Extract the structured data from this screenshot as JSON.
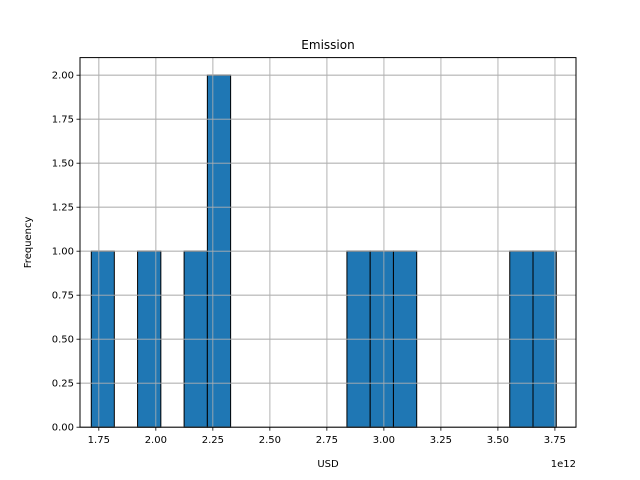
{
  "chart_data": {
    "type": "bar",
    "title": "Emission",
    "xlabel": "USD",
    "ylabel": "Frequency",
    "x_offset_label": "1e12",
    "x_scale": 1000000000000.0,
    "xlim": [
      1.6675,
      3.8425
    ],
    "ylim": [
      0,
      2.1
    ],
    "grid": true,
    "colors": {
      "bar_fill": "#1f77b4",
      "bar_edge": "#000000",
      "grid": "#b0b0b0"
    },
    "x_ticks": [
      1.75,
      2.0,
      2.25,
      2.5,
      2.75,
      3.0,
      3.25,
      3.5,
      3.75
    ],
    "x_tick_labels": [
      "1.75",
      "2.00",
      "2.25",
      "2.50",
      "2.75",
      "3.00",
      "3.25",
      "3.50",
      "3.75"
    ],
    "y_ticks": [
      0,
      0.25,
      0.5,
      0.75,
      1.0,
      1.25,
      1.5,
      1.75,
      2.0
    ],
    "y_tick_labels": [
      "0.00",
      "0.25",
      "0.50",
      "0.75",
      "1.00",
      "1.25",
      "1.50",
      "1.75",
      "2.00"
    ],
    "bins": [
      {
        "x0": 1.717,
        "x1": 1.818,
        "count": 1
      },
      {
        "x0": 1.818,
        "x1": 1.92,
        "count": 0
      },
      {
        "x0": 1.92,
        "x1": 2.022,
        "count": 1
      },
      {
        "x0": 2.022,
        "x1": 2.124,
        "count": 0
      },
      {
        "x0": 2.124,
        "x1": 2.226,
        "count": 1
      },
      {
        "x0": 2.226,
        "x1": 2.328,
        "count": 2
      },
      {
        "x0": 2.328,
        "x1": 2.43,
        "count": 0
      },
      {
        "x0": 2.43,
        "x1": 2.532,
        "count": 0
      },
      {
        "x0": 2.532,
        "x1": 2.634,
        "count": 0
      },
      {
        "x0": 2.634,
        "x1": 2.736,
        "count": 0
      },
      {
        "x0": 2.736,
        "x1": 2.838,
        "count": 0
      },
      {
        "x0": 2.838,
        "x1": 2.94,
        "count": 1
      },
      {
        "x0": 2.94,
        "x1": 3.042,
        "count": 1
      },
      {
        "x0": 3.042,
        "x1": 3.144,
        "count": 1
      },
      {
        "x0": 3.144,
        "x1": 3.246,
        "count": 0
      },
      {
        "x0": 3.246,
        "x1": 3.348,
        "count": 0
      },
      {
        "x0": 3.348,
        "x1": 3.45,
        "count": 0
      },
      {
        "x0": 3.45,
        "x1": 3.552,
        "count": 0
      },
      {
        "x0": 3.552,
        "x1": 3.654,
        "count": 1
      },
      {
        "x0": 3.654,
        "x1": 3.756,
        "count": 1
      }
    ]
  }
}
